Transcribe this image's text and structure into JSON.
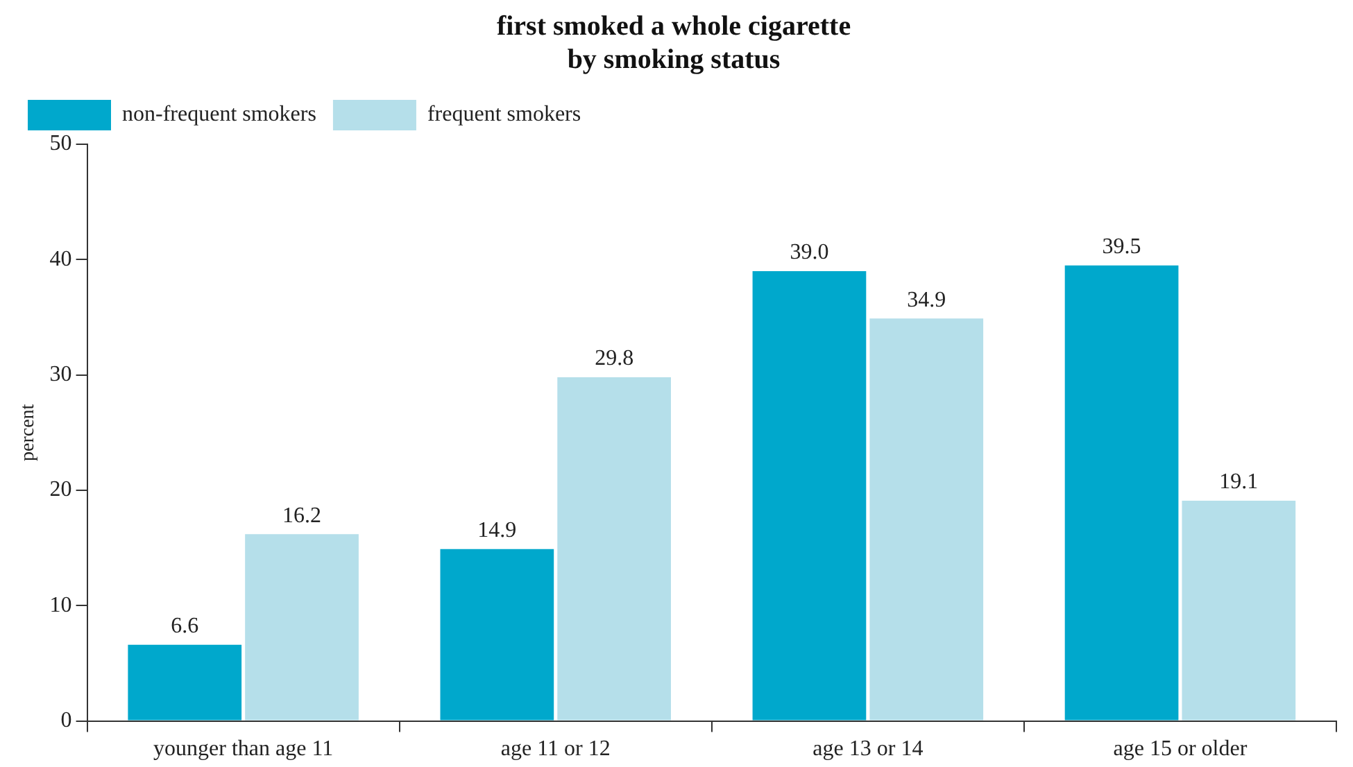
{
  "chart_data": {
    "type": "bar",
    "title": "first smoked a whole cigarette\nby smoking status",
    "ylabel": "percent",
    "categories": [
      "younger than age 11",
      "age 11 or 12",
      "age 13 or 14",
      "age 15 or older"
    ],
    "series": [
      {
        "name": "non-frequent smokers",
        "color": "#00a8cc",
        "values": [
          6.6,
          14.9,
          39.0,
          39.5
        ],
        "value_labels": [
          "6.6",
          "14.9",
          "39.0",
          "39.5"
        ]
      },
      {
        "name": "frequent smokers",
        "color": "#b5dfea",
        "values": [
          16.2,
          29.8,
          34.9,
          19.1
        ],
        "value_labels": [
          "16.2",
          "29.8",
          "34.9",
          "19.1"
        ]
      }
    ],
    "ylim": [
      0,
      50
    ],
    "yticks": [
      0,
      10,
      20,
      30,
      40,
      50
    ],
    "grid": false,
    "legend": "top left"
  }
}
